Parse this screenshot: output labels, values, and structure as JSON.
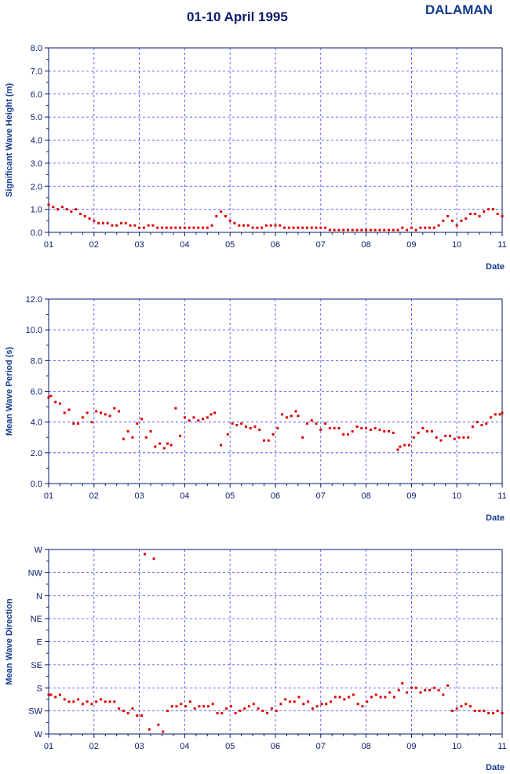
{
  "header": {
    "title": "01-10 April 1995",
    "station": "DALAMAN"
  },
  "colors": {
    "points": "#dd0000",
    "grid": "#3a3aff",
    "text": "#0a1a6b"
  },
  "chart_data": [
    {
      "type": "scatter",
      "ylabel": "Significant Wave Height (m)",
      "xlabel": "Date",
      "ylim": [
        0,
        8
      ],
      "y_ticks": [
        "0.0",
        "1.0",
        "2.0",
        "3.0",
        "4.0",
        "5.0",
        "6.0",
        "7.0",
        "8.0"
      ],
      "x_ticks": [
        "01",
        "02",
        "03",
        "04",
        "05",
        "06",
        "07",
        "08",
        "09",
        "10",
        "11"
      ],
      "xlim": [
        1,
        11
      ],
      "grid": true,
      "series": [
        {
          "x": [
            1.0,
            1.1,
            1.2,
            1.3,
            1.4,
            1.5,
            1.6,
            1.7,
            1.8,
            1.9,
            2.0,
            2.1,
            2.2,
            2.3,
            2.4,
            2.5,
            2.6,
            2.7,
            2.8,
            2.9,
            3.0,
            3.1,
            3.2,
            3.3,
            3.4,
            3.5,
            3.6,
            3.7,
            3.8,
            3.9,
            4.0,
            4.1,
            4.2,
            4.3,
            4.4,
            4.5,
            4.6,
            4.7,
            4.8,
            4.9,
            5.0,
            5.1,
            5.2,
            5.3,
            5.4,
            5.5,
            5.6,
            5.7,
            5.8,
            5.9,
            6.0,
            6.1,
            6.2,
            6.3,
            6.4,
            6.5,
            6.6,
            6.7,
            6.8,
            6.9,
            7.0,
            7.1,
            7.2,
            7.3,
            7.4,
            7.5,
            7.6,
            7.7,
            7.8,
            7.9,
            8.0,
            8.1,
            8.2,
            8.3,
            8.4,
            8.5,
            8.6,
            8.7,
            8.8,
            8.9,
            9.0,
            9.1,
            9.2,
            9.3,
            9.4,
            9.5,
            9.6,
            9.7,
            9.8,
            9.9,
            10.0,
            10.1,
            10.2,
            10.3,
            10.4,
            10.5,
            10.6,
            10.7,
            10.8,
            10.9,
            11.0
          ],
          "y": [
            1.2,
            1.1,
            1.0,
            1.1,
            1.0,
            0.9,
            1.0,
            0.8,
            0.7,
            0.6,
            0.5,
            0.4,
            0.4,
            0.4,
            0.3,
            0.3,
            0.4,
            0.4,
            0.3,
            0.3,
            0.2,
            0.2,
            0.3,
            0.3,
            0.2,
            0.2,
            0.2,
            0.2,
            0.2,
            0.2,
            0.2,
            0.2,
            0.2,
            0.2,
            0.2,
            0.2,
            0.3,
            0.7,
            0.9,
            0.7,
            0.5,
            0.4,
            0.3,
            0.3,
            0.3,
            0.2,
            0.2,
            0.2,
            0.3,
            0.3,
            0.3,
            0.3,
            0.2,
            0.2,
            0.2,
            0.2,
            0.2,
            0.2,
            0.2,
            0.2,
            0.2,
            0.2,
            0.1,
            0.1,
            0.1,
            0.1,
            0.1,
            0.1,
            0.1,
            0.1,
            0.1,
            0.1,
            0.1,
            0.1,
            0.1,
            0.1,
            0.1,
            0.1,
            0.2,
            0.1,
            0.2,
            0.1,
            0.2,
            0.2,
            0.2,
            0.2,
            0.3,
            0.5,
            0.7,
            0.5,
            0.3,
            0.5,
            0.6,
            0.8,
            0.8,
            0.7,
            0.9,
            1.0,
            1.0,
            0.8,
            0.7
          ]
        }
      ]
    },
    {
      "type": "scatter",
      "ylabel": "Mean Wave Period (s)",
      "xlabel": "Date",
      "ylim": [
        0,
        12
      ],
      "y_ticks": [
        "0.0",
        "2.0",
        "4.0",
        "6.0",
        "8.0",
        "10.0",
        "12.0"
      ],
      "x_ticks": [
        "01",
        "02",
        "03",
        "04",
        "05",
        "06",
        "07",
        "08",
        "09",
        "10",
        "11"
      ],
      "xlim": [
        1,
        11
      ],
      "grid": true,
      "series": [
        {
          "x": [
            1.0,
            1.05,
            1.15,
            1.25,
            1.35,
            1.45,
            1.55,
            1.65,
            1.75,
            1.85,
            1.95,
            2.05,
            2.15,
            2.25,
            2.35,
            2.45,
            2.55,
            2.65,
            2.75,
            2.85,
            2.95,
            3.05,
            3.15,
            3.25,
            3.35,
            3.45,
            3.55,
            3.62,
            3.7,
            3.8,
            3.9,
            4.0,
            4.1,
            4.2,
            4.3,
            4.4,
            4.5,
            4.58,
            4.66,
            4.8,
            4.95,
            5.05,
            5.15,
            5.25,
            5.35,
            5.45,
            5.55,
            5.65,
            5.75,
            5.85,
            5.95,
            6.05,
            6.15,
            6.25,
            6.35,
            6.45,
            6.5,
            6.6,
            6.7,
            6.8,
            6.9,
            7.0,
            7.1,
            7.2,
            7.3,
            7.4,
            7.5,
            7.6,
            7.7,
            7.8,
            7.9,
            8.0,
            8.1,
            8.2,
            8.3,
            8.4,
            8.5,
            8.6,
            8.7,
            8.75,
            8.85,
            8.95,
            9.05,
            9.15,
            9.25,
            9.35,
            9.45,
            9.55,
            9.65,
            9.75,
            9.85,
            9.95,
            10.05,
            10.15,
            10.25,
            10.35,
            10.45,
            10.55,
            10.65,
            10.75,
            10.85,
            10.95,
            11.0
          ],
          "y": [
            5.6,
            5.7,
            5.3,
            5.2,
            4.6,
            4.8,
            3.9,
            3.9,
            4.3,
            4.6,
            4.0,
            4.7,
            4.6,
            4.5,
            4.4,
            4.9,
            4.7,
            2.9,
            3.4,
            3.0,
            3.9,
            4.2,
            3.0,
            3.4,
            2.4,
            2.6,
            2.3,
            2.6,
            2.5,
            4.9,
            3.1,
            4.3,
            4.1,
            4.3,
            4.1,
            4.2,
            4.3,
            4.5,
            4.6,
            2.5,
            3.2,
            3.9,
            3.8,
            3.9,
            3.7,
            3.6,
            3.7,
            3.5,
            2.8,
            2.8,
            3.2,
            3.6,
            4.5,
            4.3,
            4.4,
            4.7,
            4.4,
            3.0,
            3.9,
            4.1,
            3.9,
            3.5,
            3.9,
            3.6,
            3.6,
            3.6,
            3.2,
            3.2,
            3.4,
            3.7,
            3.6,
            3.6,
            3.5,
            3.6,
            3.5,
            3.4,
            3.4,
            3.3,
            2.2,
            2.4,
            2.5,
            2.5,
            3.0,
            3.3,
            3.6,
            3.4,
            3.4,
            3.0,
            2.8,
            3.1,
            3.1,
            2.9,
            3.0,
            3.0,
            3.0,
            3.7,
            4.0,
            3.8,
            3.9,
            4.3,
            4.5,
            4.5,
            4.6
          ]
        }
      ]
    },
    {
      "type": "scatter",
      "ylabel": "Mean Wave Direction",
      "xlabel": "Date",
      "y_categories": [
        "W",
        "SW",
        "S",
        "SE",
        "E",
        "NE",
        "N",
        "NW",
        "W"
      ],
      "y_ticks": [
        "W",
        "SW",
        "S",
        "SE",
        "E",
        "NE",
        "N",
        "NW",
        "W"
      ],
      "y_units": "index (0=W bottom, 8=W top)",
      "ylim": [
        0,
        8
      ],
      "x_ticks": [
        "01",
        "02",
        "03",
        "04",
        "05",
        "06",
        "07",
        "08",
        "09",
        "10",
        "11"
      ],
      "xlim": [
        1,
        11
      ],
      "grid": true,
      "series": [
        {
          "x": [
            1.0,
            1.05,
            1.15,
            1.25,
            1.35,
            1.45,
            1.55,
            1.65,
            1.75,
            1.85,
            1.95,
            2.05,
            2.15,
            2.25,
            2.35,
            2.45,
            2.55,
            2.65,
            2.75,
            2.85,
            2.95,
            3.05,
            3.12,
            3.22,
            3.32,
            3.42,
            3.52,
            3.62,
            3.72,
            3.82,
            3.92,
            4.02,
            4.12,
            4.22,
            4.32,
            4.42,
            4.52,
            4.62,
            4.72,
            4.82,
            4.92,
            5.02,
            5.12,
            5.22,
            5.32,
            5.42,
            5.52,
            5.62,
            5.72,
            5.82,
            5.92,
            6.02,
            6.12,
            6.22,
            6.32,
            6.42,
            6.52,
            6.62,
            6.72,
            6.82,
            6.92,
            7.02,
            7.12,
            7.22,
            7.32,
            7.42,
            7.52,
            7.62,
            7.72,
            7.82,
            7.92,
            8.02,
            8.12,
            8.22,
            8.32,
            8.42,
            8.52,
            8.62,
            8.72,
            8.8,
            8.9,
            9.0,
            9.1,
            9.2,
            9.3,
            9.4,
            9.5,
            9.6,
            9.7,
            9.8,
            9.9,
            10.0,
            10.1,
            10.2,
            10.3,
            10.4,
            10.5,
            10.6,
            10.7,
            10.8,
            10.9,
            11.0
          ],
          "y": [
            1.7,
            1.7,
            1.6,
            1.7,
            1.5,
            1.4,
            1.4,
            1.5,
            1.3,
            1.4,
            1.3,
            1.4,
            1.5,
            1.4,
            1.4,
            1.4,
            1.1,
            1.0,
            0.9,
            1.1,
            0.8,
            0.8,
            7.8,
            0.2,
            7.6,
            0.4,
            0.1,
            1.0,
            1.2,
            1.2,
            1.3,
            1.2,
            1.4,
            1.1,
            1.2,
            1.2,
            1.2,
            1.3,
            0.9,
            0.9,
            1.1,
            1.2,
            0.9,
            1.0,
            1.1,
            1.2,
            1.3,
            1.1,
            1.0,
            0.9,
            1.1,
            1.0,
            1.3,
            1.5,
            1.4,
            1.4,
            1.6,
            1.3,
            1.4,
            1.1,
            1.2,
            1.3,
            1.3,
            1.4,
            1.6,
            1.6,
            1.5,
            1.6,
            1.7,
            1.3,
            1.2,
            1.4,
            1.6,
            1.7,
            1.6,
            1.6,
            1.8,
            1.6,
            1.9,
            2.2,
            1.8,
            2.0,
            2.0,
            1.8,
            1.9,
            1.9,
            2.0,
            1.9,
            1.7,
            2.1,
            1.0,
            1.1,
            1.2,
            1.3,
            1.2,
            1.0,
            1.0,
            1.0,
            0.9,
            0.9,
            1.0,
            0.9
          ]
        }
      ]
    }
  ]
}
